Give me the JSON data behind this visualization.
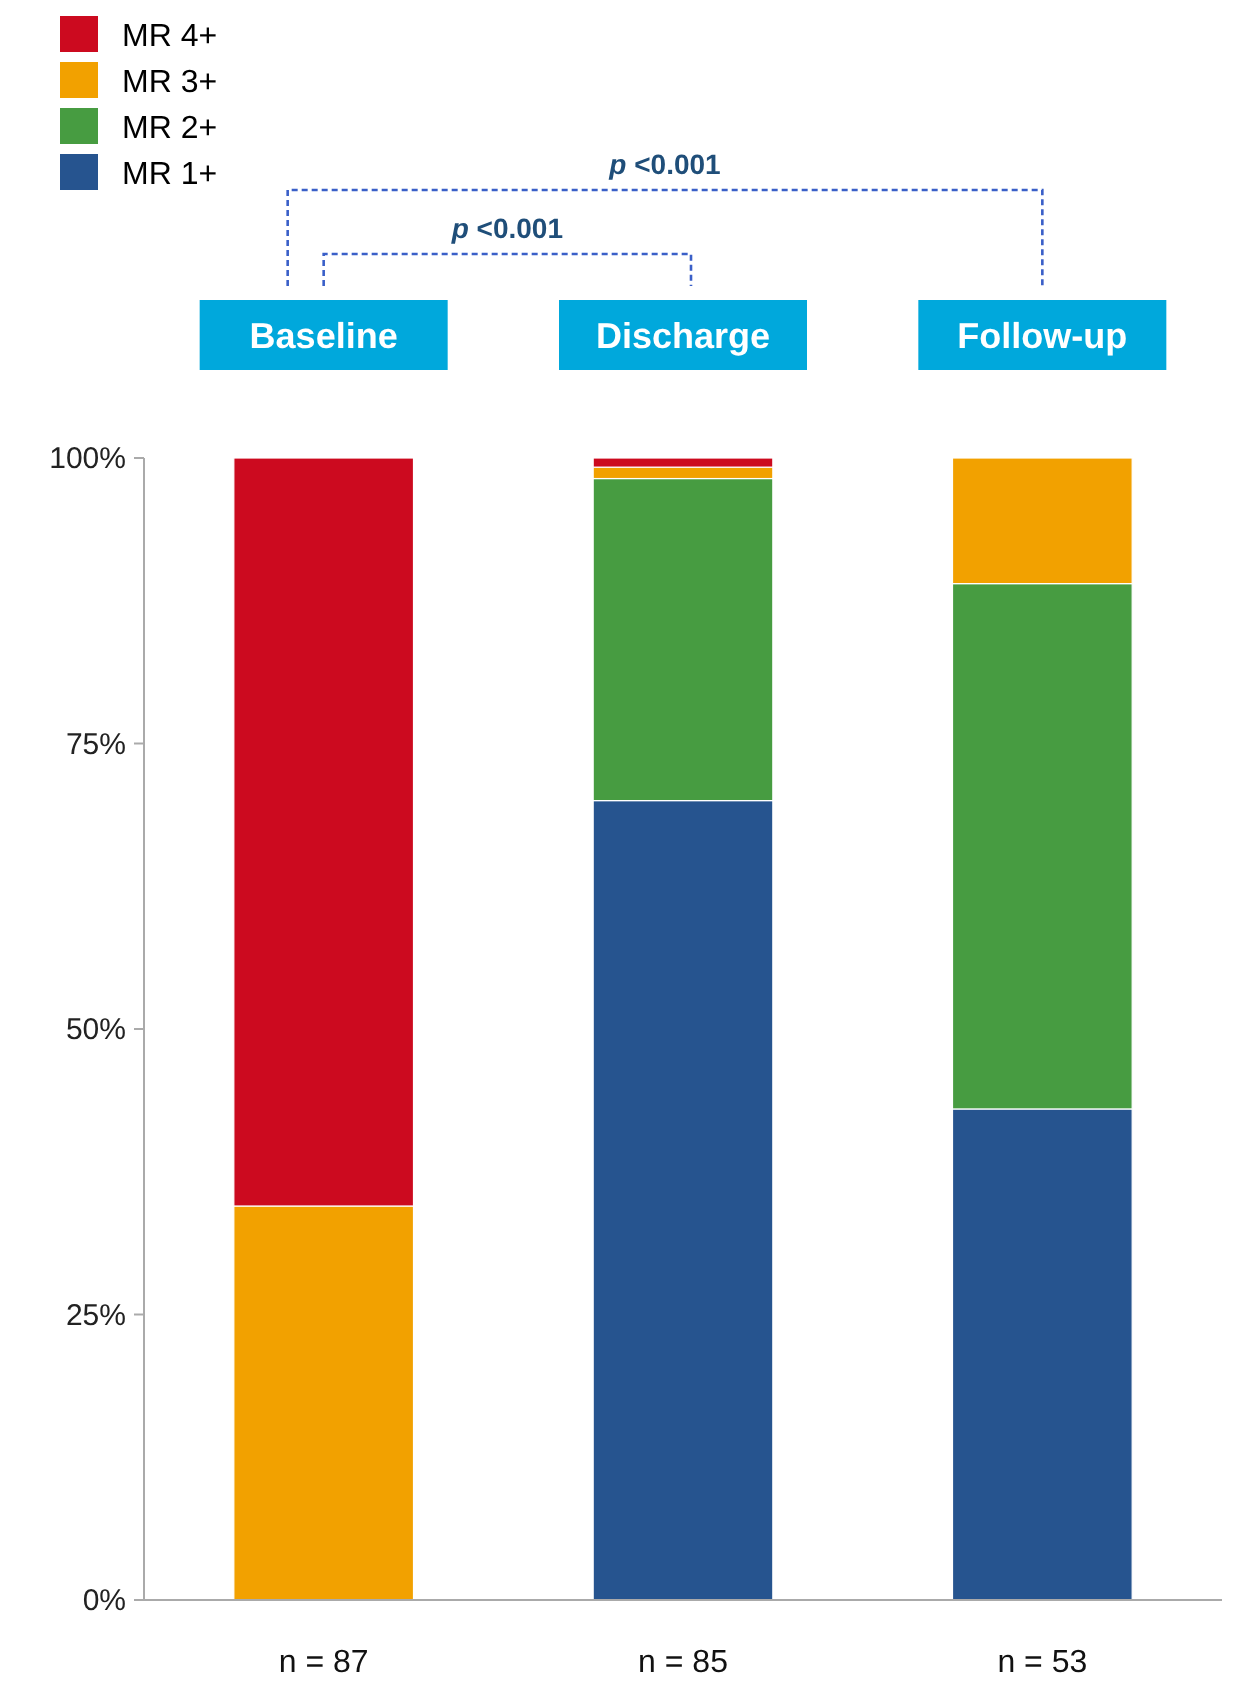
{
  "chart_data": {
    "type": "bar",
    "stacked": true,
    "categories": [
      "Baseline",
      "Discharge",
      "Follow-up"
    ],
    "series": [
      {
        "name": "MR 1+",
        "color": "#26548f",
        "values": [
          0,
          70,
          43
        ]
      },
      {
        "name": "MR 2+",
        "color": "#479c41",
        "values": [
          0,
          28.2,
          46
        ]
      },
      {
        "name": "MR 3+",
        "color": "#f2a100",
        "values": [
          34.5,
          1,
          11
        ]
      },
      {
        "name": "MR 4+",
        "color": "#cc0a1f",
        "values": [
          65.5,
          0.8,
          0
        ]
      }
    ],
    "ylim": [
      0,
      100
    ],
    "yticks": [
      {
        "value": 0,
        "label": "0%"
      },
      {
        "value": 25,
        "label": "25%"
      },
      {
        "value": 50,
        "label": "50%"
      },
      {
        "value": 75,
        "label": "75%"
      },
      {
        "value": 100,
        "label": "100%"
      }
    ],
    "grid": false,
    "legend": "top left",
    "annotations": [
      "n = 87",
      "n = 85",
      "n = 53",
      "p <0.001",
      "p <0.001"
    ]
  }
}
